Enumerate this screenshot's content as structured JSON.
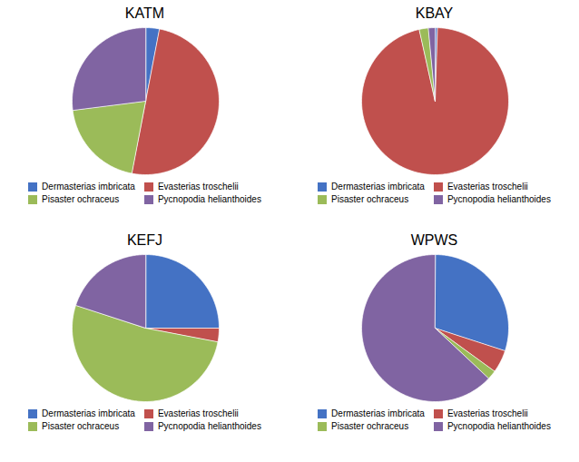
{
  "chart_data": [
    {
      "type": "pie",
      "title": "KATM",
      "categories": [
        "Dermasterias imbricata",
        "Evasterias troschelii",
        "Pisaster ochraceus",
        "Pycnopodia helianthoides"
      ],
      "values": [
        3,
        50,
        20,
        27
      ],
      "colors": [
        "#4472C4",
        "#C0504D",
        "#9BBB59",
        "#8064A2"
      ],
      "legend": "bottom"
    },
    {
      "type": "pie",
      "title": "KBAY",
      "categories": [
        "Dermasterias imbricata",
        "Evasterias troschelii",
        "Pisaster ochraceus",
        "Pycnopodia helianthoides"
      ],
      "values": [
        0.5,
        96,
        2,
        1.5
      ],
      "colors": [
        "#4472C4",
        "#C0504D",
        "#9BBB59",
        "#8064A2"
      ],
      "legend": "bottom"
    },
    {
      "type": "pie",
      "title": "KEFJ",
      "categories": [
        "Dermasterias imbricata",
        "Evasterias troschelii",
        "Pisaster ochraceus",
        "Pycnopodia helianthoides"
      ],
      "values": [
        25,
        3,
        52,
        20
      ],
      "colors": [
        "#4472C4",
        "#C0504D",
        "#9BBB59",
        "#8064A2"
      ],
      "legend": "bottom"
    },
    {
      "type": "pie",
      "title": "WPWS",
      "categories": [
        "Dermasterias imbricata",
        "Evasterias troschelii",
        "Pisaster ochraceus",
        "Pycnopodia helianthoides"
      ],
      "values": [
        30,
        5,
        2,
        63
      ],
      "colors": [
        "#4472C4",
        "#C0504D",
        "#9BBB59",
        "#8064A2"
      ],
      "legend": "bottom"
    }
  ]
}
